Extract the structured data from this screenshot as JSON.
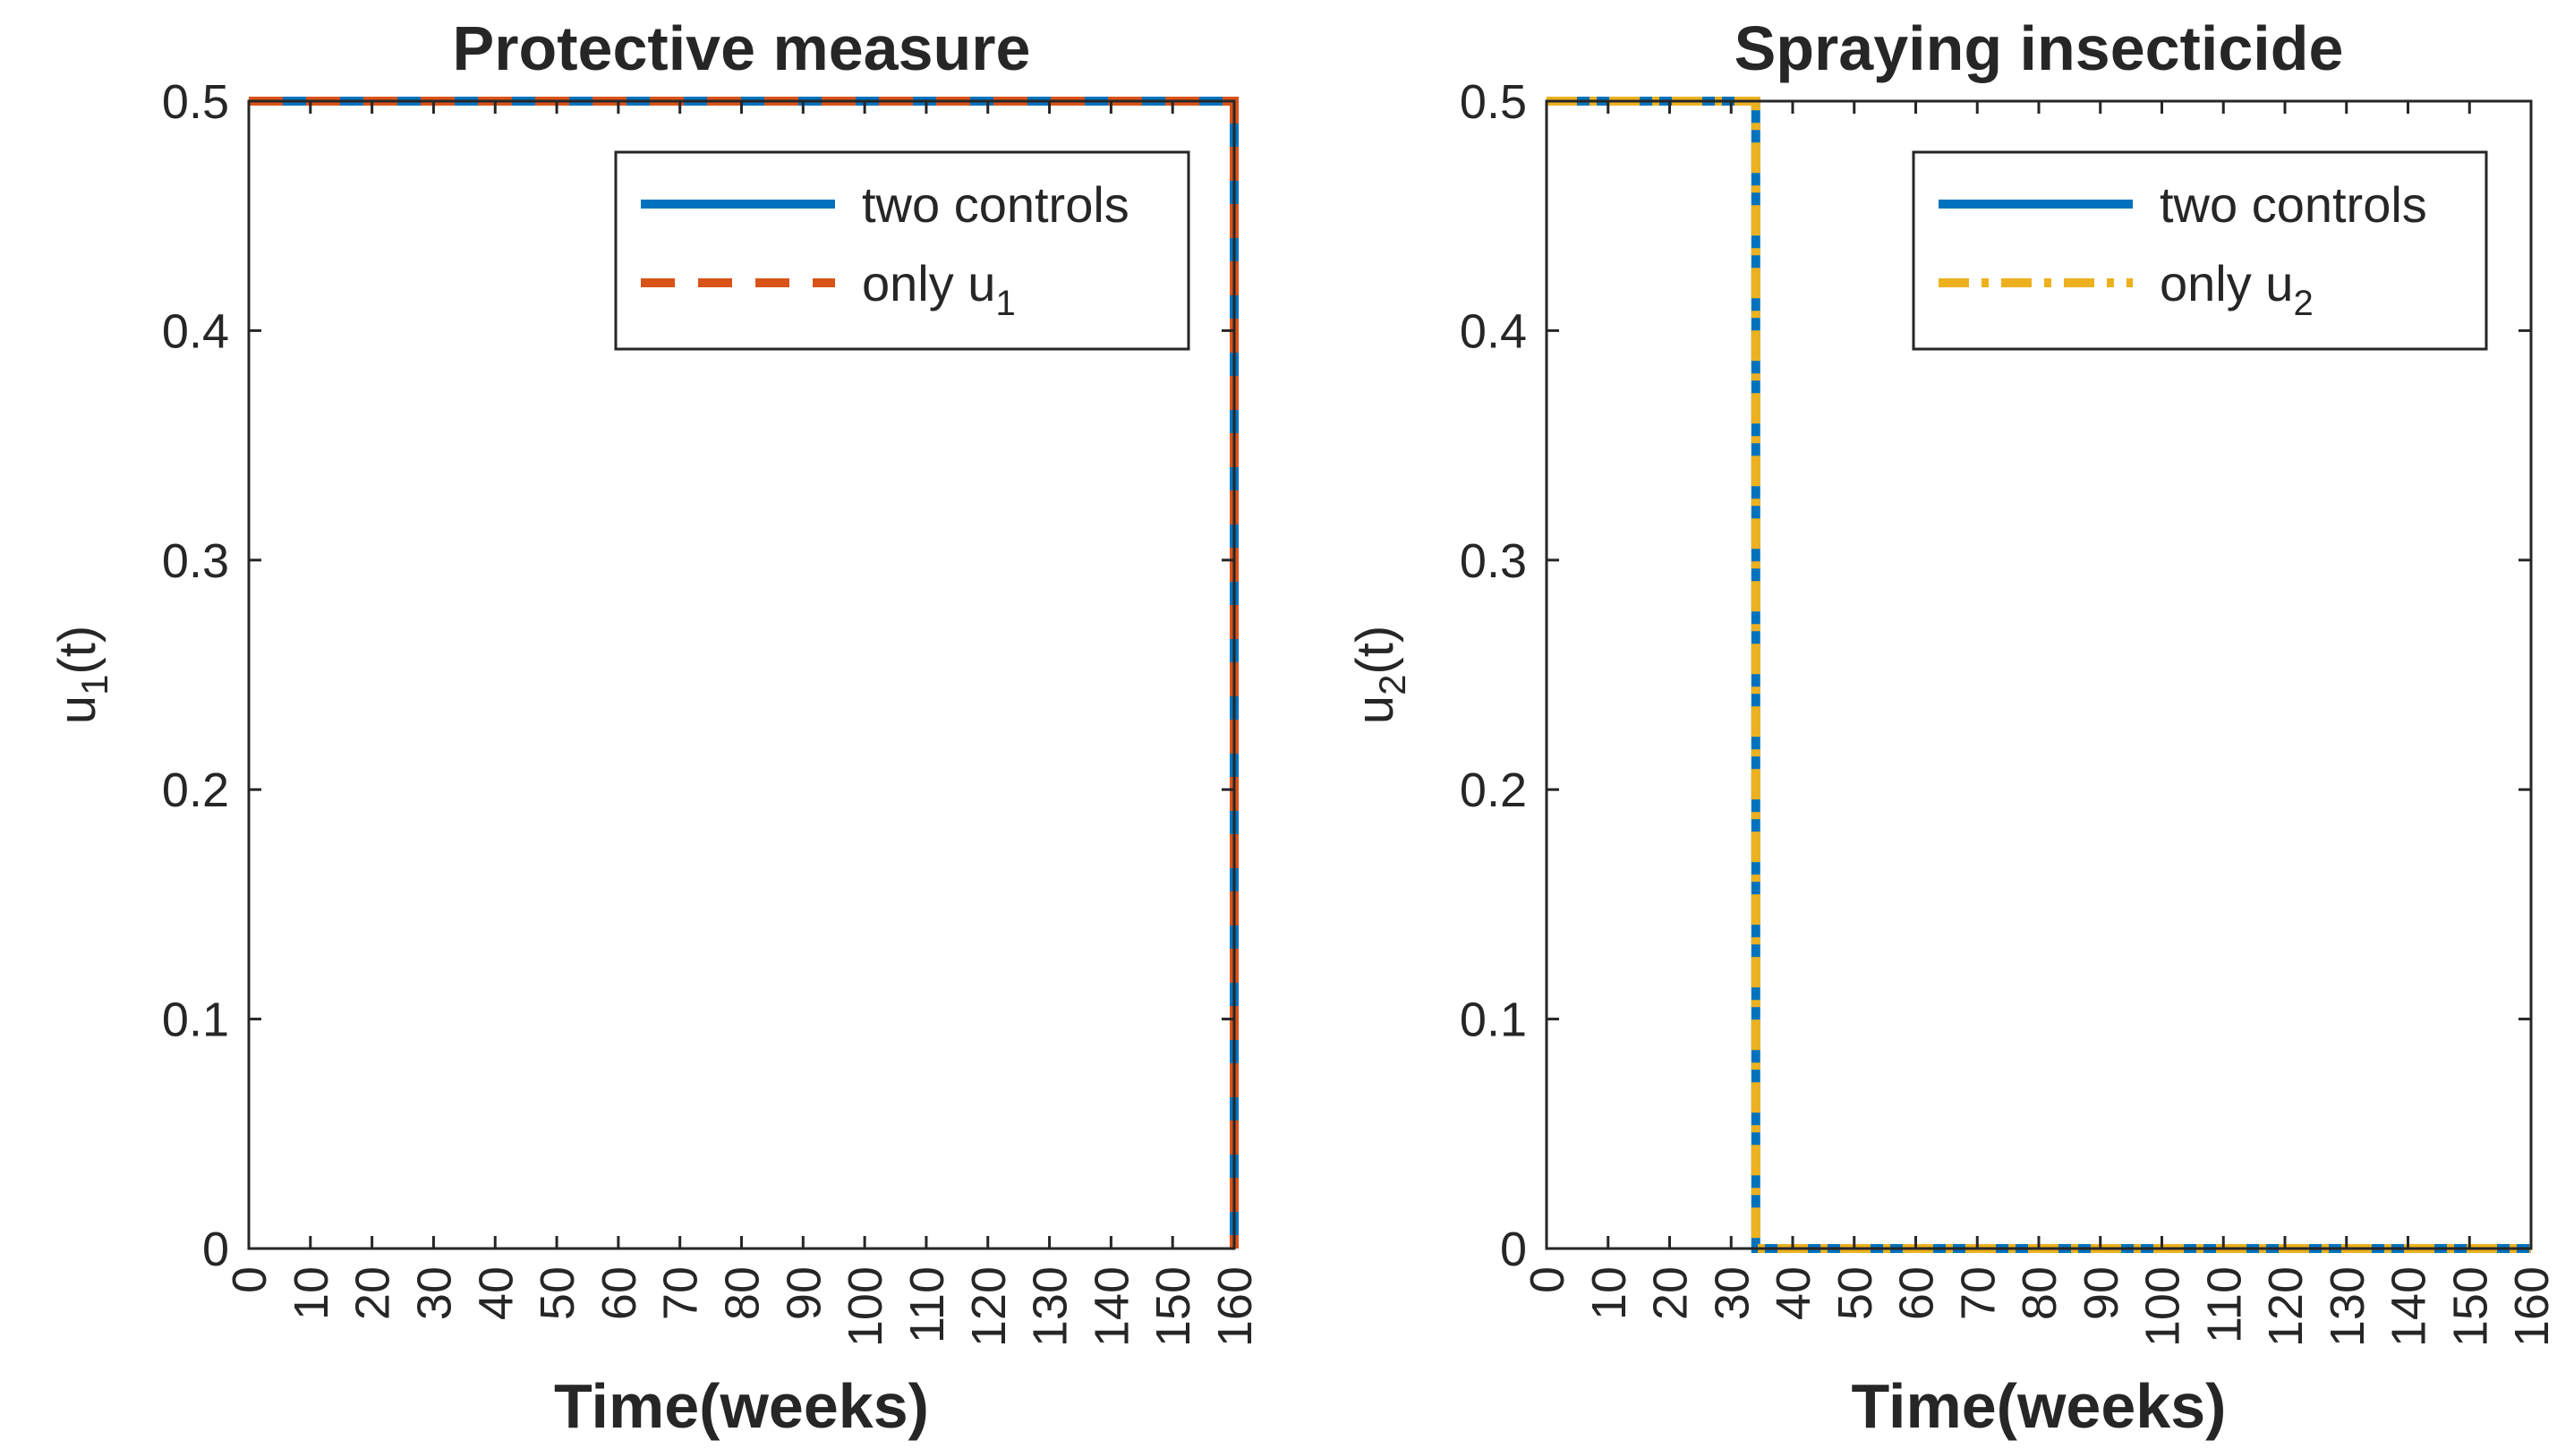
{
  "chart_data": [
    {
      "type": "line",
      "title": "Protective measure",
      "xlabel": "Time(weeks)",
      "ylabel": "u",
      "ylabel_sub": "1",
      "ylabel_suffix": "(t)",
      "xlim": [
        0,
        160
      ],
      "ylim": [
        0,
        0.5
      ],
      "xticks": [
        0,
        10,
        20,
        30,
        40,
        50,
        60,
        70,
        80,
        90,
        100,
        110,
        120,
        130,
        140,
        150,
        160
      ],
      "yticks": [
        0,
        0.1,
        0.2,
        0.3,
        0.4,
        0.5
      ],
      "legend_position": "top-right",
      "series": [
        {
          "name": "two controls",
          "name_main": "two controls",
          "name_sub": "",
          "color": "#0072BD",
          "style": "solid",
          "x": [
            0,
            160,
            160
          ],
          "y": [
            0.5,
            0.5,
            0
          ]
        },
        {
          "name": "only u1",
          "name_main": "only u",
          "name_sub": "1",
          "color": "#D95319",
          "style": "dashed",
          "x": [
            0,
            160,
            160
          ],
          "y": [
            0.5,
            0.5,
            0
          ]
        }
      ]
    },
    {
      "type": "line",
      "title": "Spraying insecticide",
      "xlabel": "Time(weeks)",
      "ylabel": "u",
      "ylabel_sub": "2",
      "ylabel_suffix": "(t)",
      "xlim": [
        0,
        160
      ],
      "ylim": [
        0,
        0.5
      ],
      "xticks": [
        0,
        10,
        20,
        30,
        40,
        50,
        60,
        70,
        80,
        90,
        100,
        110,
        120,
        130,
        140,
        150,
        160
      ],
      "yticks": [
        0,
        0.1,
        0.2,
        0.3,
        0.4,
        0.5
      ],
      "legend_position": "top-right",
      "series": [
        {
          "name": "two controls",
          "name_main": "two controls",
          "name_sub": "",
          "color": "#0072BD",
          "style": "solid",
          "x": [
            0,
            34,
            34,
            160
          ],
          "y": [
            0.5,
            0.5,
            0,
            0
          ]
        },
        {
          "name": "only u2",
          "name_main": "only u",
          "name_sub": "2",
          "color": "#EDB120",
          "style": "dashdot",
          "x": [
            0,
            34,
            34,
            160
          ],
          "y": [
            0.5,
            0.5,
            0,
            0
          ]
        }
      ]
    }
  ]
}
